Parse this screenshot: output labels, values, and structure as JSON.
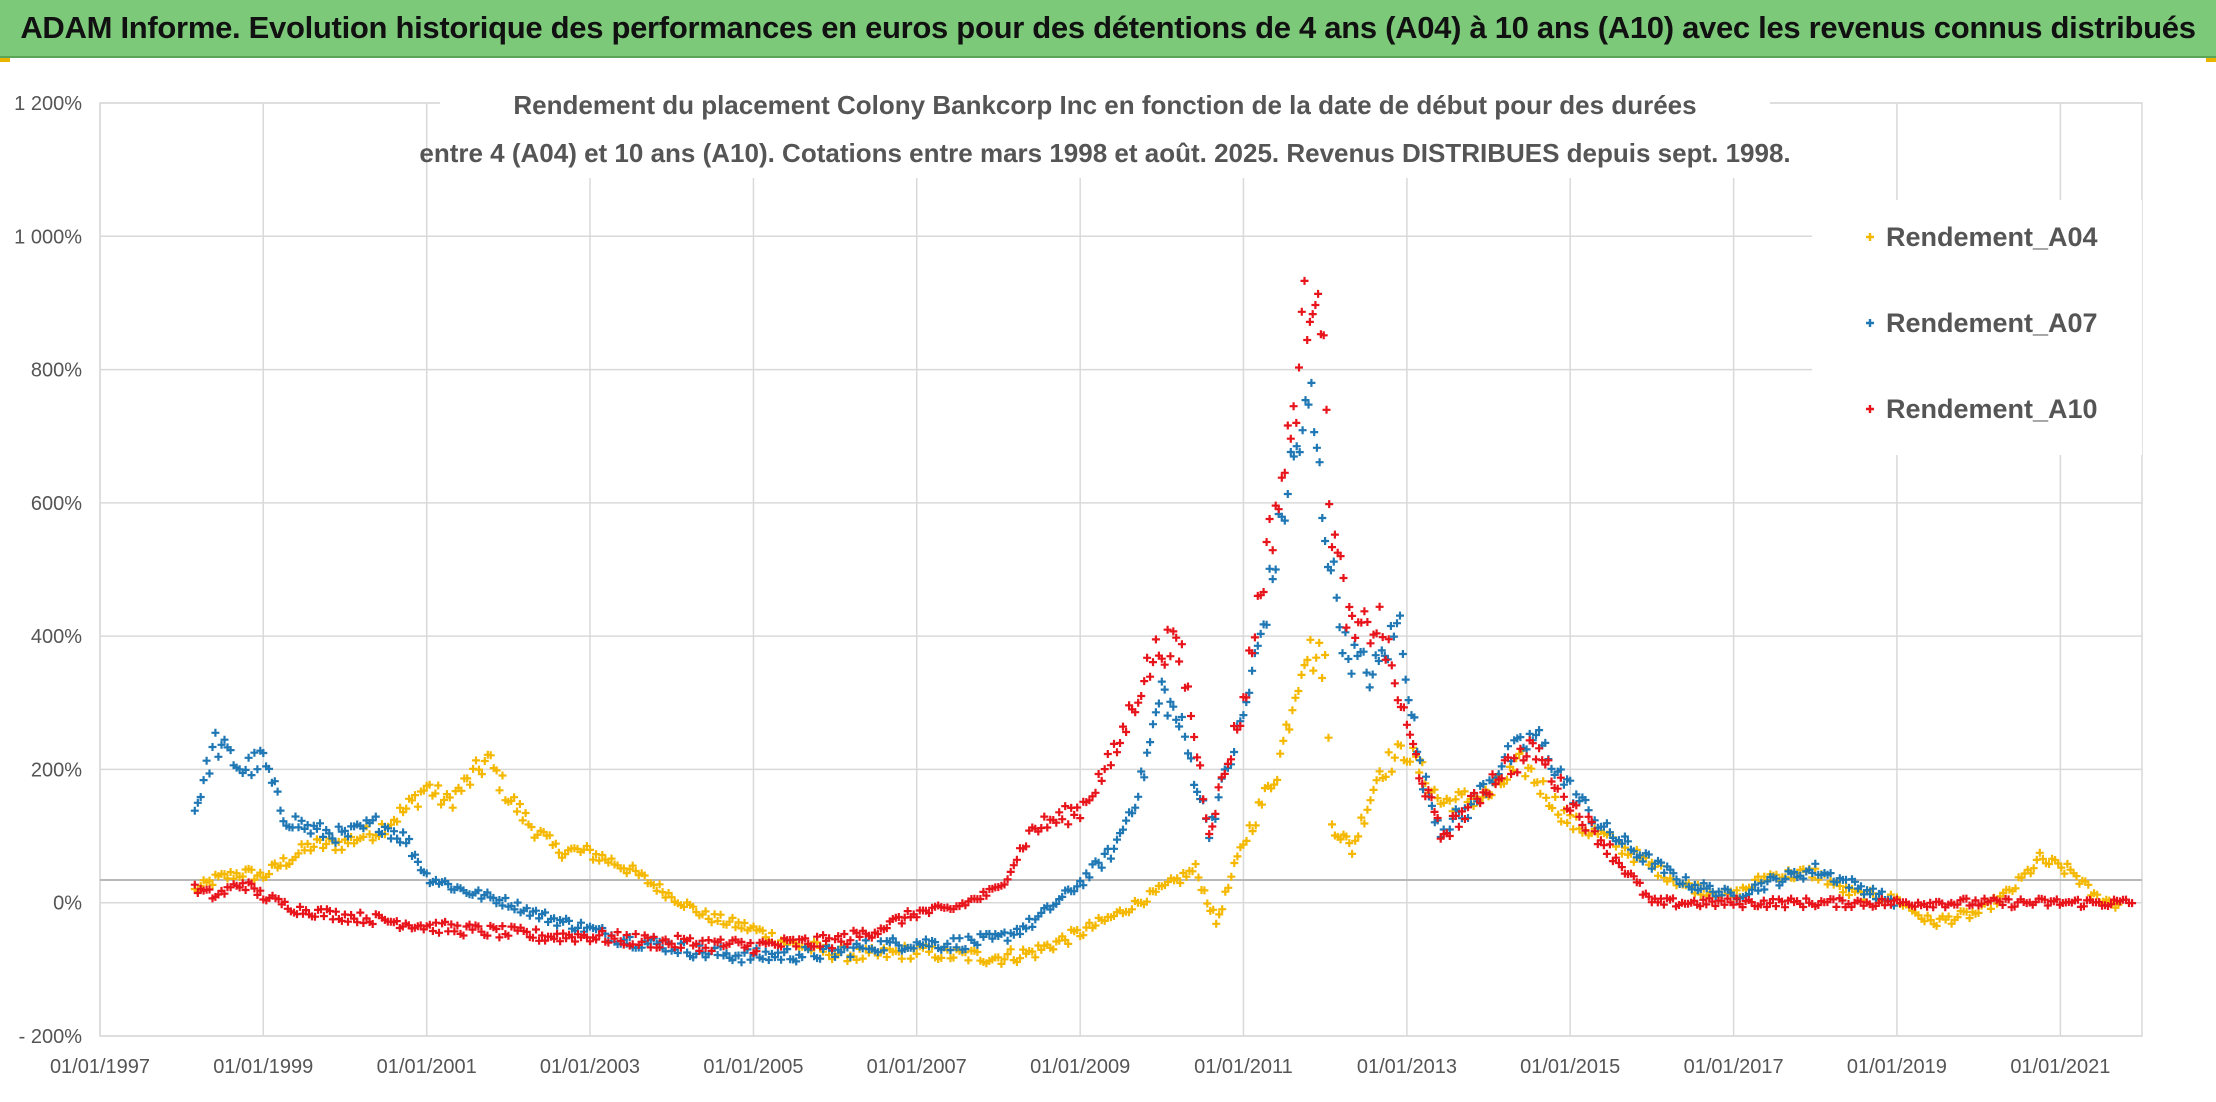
{
  "header": {
    "title": "ADAM Informe. Evolution historique des performances en euros pour des détentions de 4 ans (A04) à 10 ans (A10) avec les revenus connus distribués"
  },
  "chart_data": {
    "type": "scatter",
    "subtitle_line1": "Rendement du placement Colony Bankcorp Inc en fonction de la date de début pour des durées",
    "subtitle_line2": "entre 4 (A04) et 10 ans (A10). Cotations entre mars 1998 et août. 2025. Revenus DISTRIBUES depuis sept. 1998.",
    "xlim": [
      "1997-01-01",
      "2022-01-01"
    ],
    "ylim": [
      -200,
      1200
    ],
    "x_tick_labels": [
      "01/01/1997",
      "01/01/1999",
      "01/01/2001",
      "01/01/2003",
      "01/01/2005",
      "01/01/2007",
      "01/01/2009",
      "01/01/2011",
      "01/01/2013",
      "01/01/2015",
      "01/01/2017",
      "01/01/2019",
      "01/01/2021"
    ],
    "y_tick_labels": [
      "- 200%",
      "0%",
      "200%",
      "400%",
      "600%",
      "800%",
      "1 000%",
      "1 200%"
    ],
    "grid": true,
    "legend_position": "top-right",
    "series": [
      {
        "name": "Rendement_A04",
        "color": "#f5b800",
        "points": [
          [
            "1998-03-01",
            18
          ],
          [
            "1998-06-01",
            35
          ],
          [
            "1998-10-01",
            45
          ],
          [
            "1999-01-01",
            40
          ],
          [
            "1999-04-01",
            60
          ],
          [
            "1999-08-01",
            85
          ],
          [
            "2000-01-01",
            90
          ],
          [
            "2000-06-01",
            110
          ],
          [
            "2000-10-01",
            140
          ],
          [
            "2001-01-01",
            175
          ],
          [
            "2001-04-01",
            150
          ],
          [
            "2001-07-01",
            180
          ],
          [
            "2001-10-01",
            215
          ],
          [
            "2002-01-01",
            160
          ],
          [
            "2002-04-01",
            120
          ],
          [
            "2002-08-01",
            80
          ],
          [
            "2003-01-01",
            75
          ],
          [
            "2003-06-01",
            55
          ],
          [
            "2004-01-01",
            10
          ],
          [
            "2004-06-01",
            -20
          ],
          [
            "2005-01-01",
            -40
          ],
          [
            "2005-06-01",
            -60
          ],
          [
            "2006-01-01",
            -75
          ],
          [
            "2006-06-01",
            -80
          ],
          [
            "2007-01-01",
            -72
          ],
          [
            "2007-06-01",
            -78
          ],
          [
            "2008-01-01",
            -82
          ],
          [
            "2008-06-01",
            -75
          ],
          [
            "2009-01-01",
            -45
          ],
          [
            "2009-06-01",
            -20
          ],
          [
            "2010-01-01",
            20
          ],
          [
            "2010-06-01",
            50
          ],
          [
            "2010-09-01",
            -30
          ],
          [
            "2011-01-01",
            90
          ],
          [
            "2011-06-01",
            200
          ],
          [
            "2011-10-01",
            380
          ],
          [
            "2012-01-01",
            360
          ],
          [
            "2012-02-01",
            120
          ],
          [
            "2012-05-01",
            80
          ],
          [
            "2012-09-01",
            200
          ],
          [
            "2013-01-01",
            230
          ],
          [
            "2013-06-01",
            150
          ],
          [
            "2014-01-01",
            160
          ],
          [
            "2014-06-01",
            210
          ],
          [
            "2015-01-01",
            120
          ],
          [
            "2015-06-01",
            100
          ],
          [
            "2016-01-01",
            55
          ],
          [
            "2016-06-01",
            25
          ],
          [
            "2017-01-01",
            10
          ],
          [
            "2017-06-01",
            40
          ],
          [
            "2018-01-01",
            45
          ],
          [
            "2018-06-01",
            15
          ],
          [
            "2019-01-01",
            5
          ],
          [
            "2019-06-01",
            -30
          ],
          [
            "2020-01-01",
            -15
          ],
          [
            "2020-06-01",
            20
          ],
          [
            "2020-10-01",
            65
          ],
          [
            "2021-03-01",
            45
          ],
          [
            "2021-06-01",
            10
          ],
          [
            "2021-10-01",
            -5
          ]
        ]
      },
      {
        "name": "Rendement_A07",
        "color": "#1f77b4",
        "points": [
          [
            "1998-03-01",
            140
          ],
          [
            "1998-06-01",
            240
          ],
          [
            "1998-10-01",
            200
          ],
          [
            "1999-01-01",
            215
          ],
          [
            "1999-04-01",
            130
          ],
          [
            "1999-08-01",
            110
          ],
          [
            "2000-01-01",
            100
          ],
          [
            "2000-06-01",
            120
          ],
          [
            "2000-10-01",
            95
          ],
          [
            "2001-01-01",
            40
          ],
          [
            "2001-06-01",
            20
          ],
          [
            "2002-01-01",
            0
          ],
          [
            "2002-06-01",
            -20
          ],
          [
            "2003-01-01",
            -40
          ],
          [
            "2003-06-01",
            -55
          ],
          [
            "2004-01-01",
            -65
          ],
          [
            "2004-06-01",
            -75
          ],
          [
            "2005-01-01",
            -80
          ],
          [
            "2005-06-01",
            -78
          ],
          [
            "2006-01-01",
            -75
          ],
          [
            "2006-06-01",
            -65
          ],
          [
            "2007-01-01",
            -60
          ],
          [
            "2007-06-01",
            -62
          ],
          [
            "2008-01-01",
            -55
          ],
          [
            "2008-06-01",
            -30
          ],
          [
            "2009-01-01",
            30
          ],
          [
            "2009-06-01",
            80
          ],
          [
            "2009-10-01",
            180
          ],
          [
            "2010-01-01",
            320
          ],
          [
            "2010-04-01",
            260
          ],
          [
            "2010-08-01",
            110
          ],
          [
            "2011-01-01",
            280
          ],
          [
            "2011-04-01",
            420
          ],
          [
            "2011-08-01",
            650
          ],
          [
            "2011-11-01",
            750
          ],
          [
            "2012-01-01",
            560
          ],
          [
            "2012-04-01",
            380
          ],
          [
            "2012-08-01",
            340
          ],
          [
            "2012-12-01",
            420
          ],
          [
            "2013-03-01",
            200
          ],
          [
            "2013-06-01",
            110
          ],
          [
            "2013-10-01",
            140
          ],
          [
            "2014-03-01",
            210
          ],
          [
            "2014-08-01",
            250
          ],
          [
            "2015-01-01",
            170
          ],
          [
            "2015-06-01",
            110
          ],
          [
            "2016-01-01",
            60
          ],
          [
            "2016-06-01",
            30
          ],
          [
            "2017-01-01",
            10
          ],
          [
            "2017-06-01",
            30
          ],
          [
            "2018-01-01",
            50
          ],
          [
            "2018-06-01",
            30
          ],
          [
            "2019-01-01",
            0
          ]
        ]
      },
      {
        "name": "Rendement_A10",
        "color": "#e8141b",
        "points": [
          [
            "1998-03-01",
            20
          ],
          [
            "1998-06-01",
            10
          ],
          [
            "1998-10-01",
            30
          ],
          [
            "1999-01-01",
            10
          ],
          [
            "1999-06-01",
            -10
          ],
          [
            "2000-01-01",
            -20
          ],
          [
            "2000-06-01",
            -25
          ],
          [
            "2001-01-01",
            -35
          ],
          [
            "2001-06-01",
            -40
          ],
          [
            "2002-01-01",
            -45
          ],
          [
            "2002-06-01",
            -50
          ],
          [
            "2003-01-01",
            -50
          ],
          [
            "2003-06-01",
            -55
          ],
          [
            "2004-01-01",
            -60
          ],
          [
            "2004-06-01",
            -62
          ],
          [
            "2005-01-01",
            -65
          ],
          [
            "2005-06-01",
            -62
          ],
          [
            "2006-01-01",
            -58
          ],
          [
            "2006-06-01",
            -45
          ],
          [
            "2007-01-01",
            -15
          ],
          [
            "2007-06-01",
            -10
          ],
          [
            "2008-01-01",
            20
          ],
          [
            "2008-06-01",
            110
          ],
          [
            "2009-01-01",
            140
          ],
          [
            "2009-06-01",
            220
          ],
          [
            "2009-10-01",
            330
          ],
          [
            "2010-01-01",
            390
          ],
          [
            "2010-04-01",
            370
          ],
          [
            "2010-08-01",
            110
          ],
          [
            "2011-01-01",
            300
          ],
          [
            "2011-04-01",
            500
          ],
          [
            "2011-08-01",
            700
          ],
          [
            "2011-10-01",
            880
          ],
          [
            "2011-12-01",
            960
          ],
          [
            "2012-02-01",
            560
          ],
          [
            "2012-05-01",
            400
          ],
          [
            "2012-09-01",
            420
          ],
          [
            "2013-01-01",
            260
          ],
          [
            "2013-06-01",
            100
          ],
          [
            "2013-10-01",
            140
          ],
          [
            "2014-03-01",
            200
          ],
          [
            "2014-08-01",
            230
          ],
          [
            "2015-01-01",
            150
          ],
          [
            "2015-06-01",
            90
          ],
          [
            "2016-01-01",
            0
          ],
          [
            "2018-01-01",
            0
          ],
          [
            "2020-01-01",
            0
          ],
          [
            "2021-12-01",
            0
          ]
        ]
      }
    ]
  }
}
